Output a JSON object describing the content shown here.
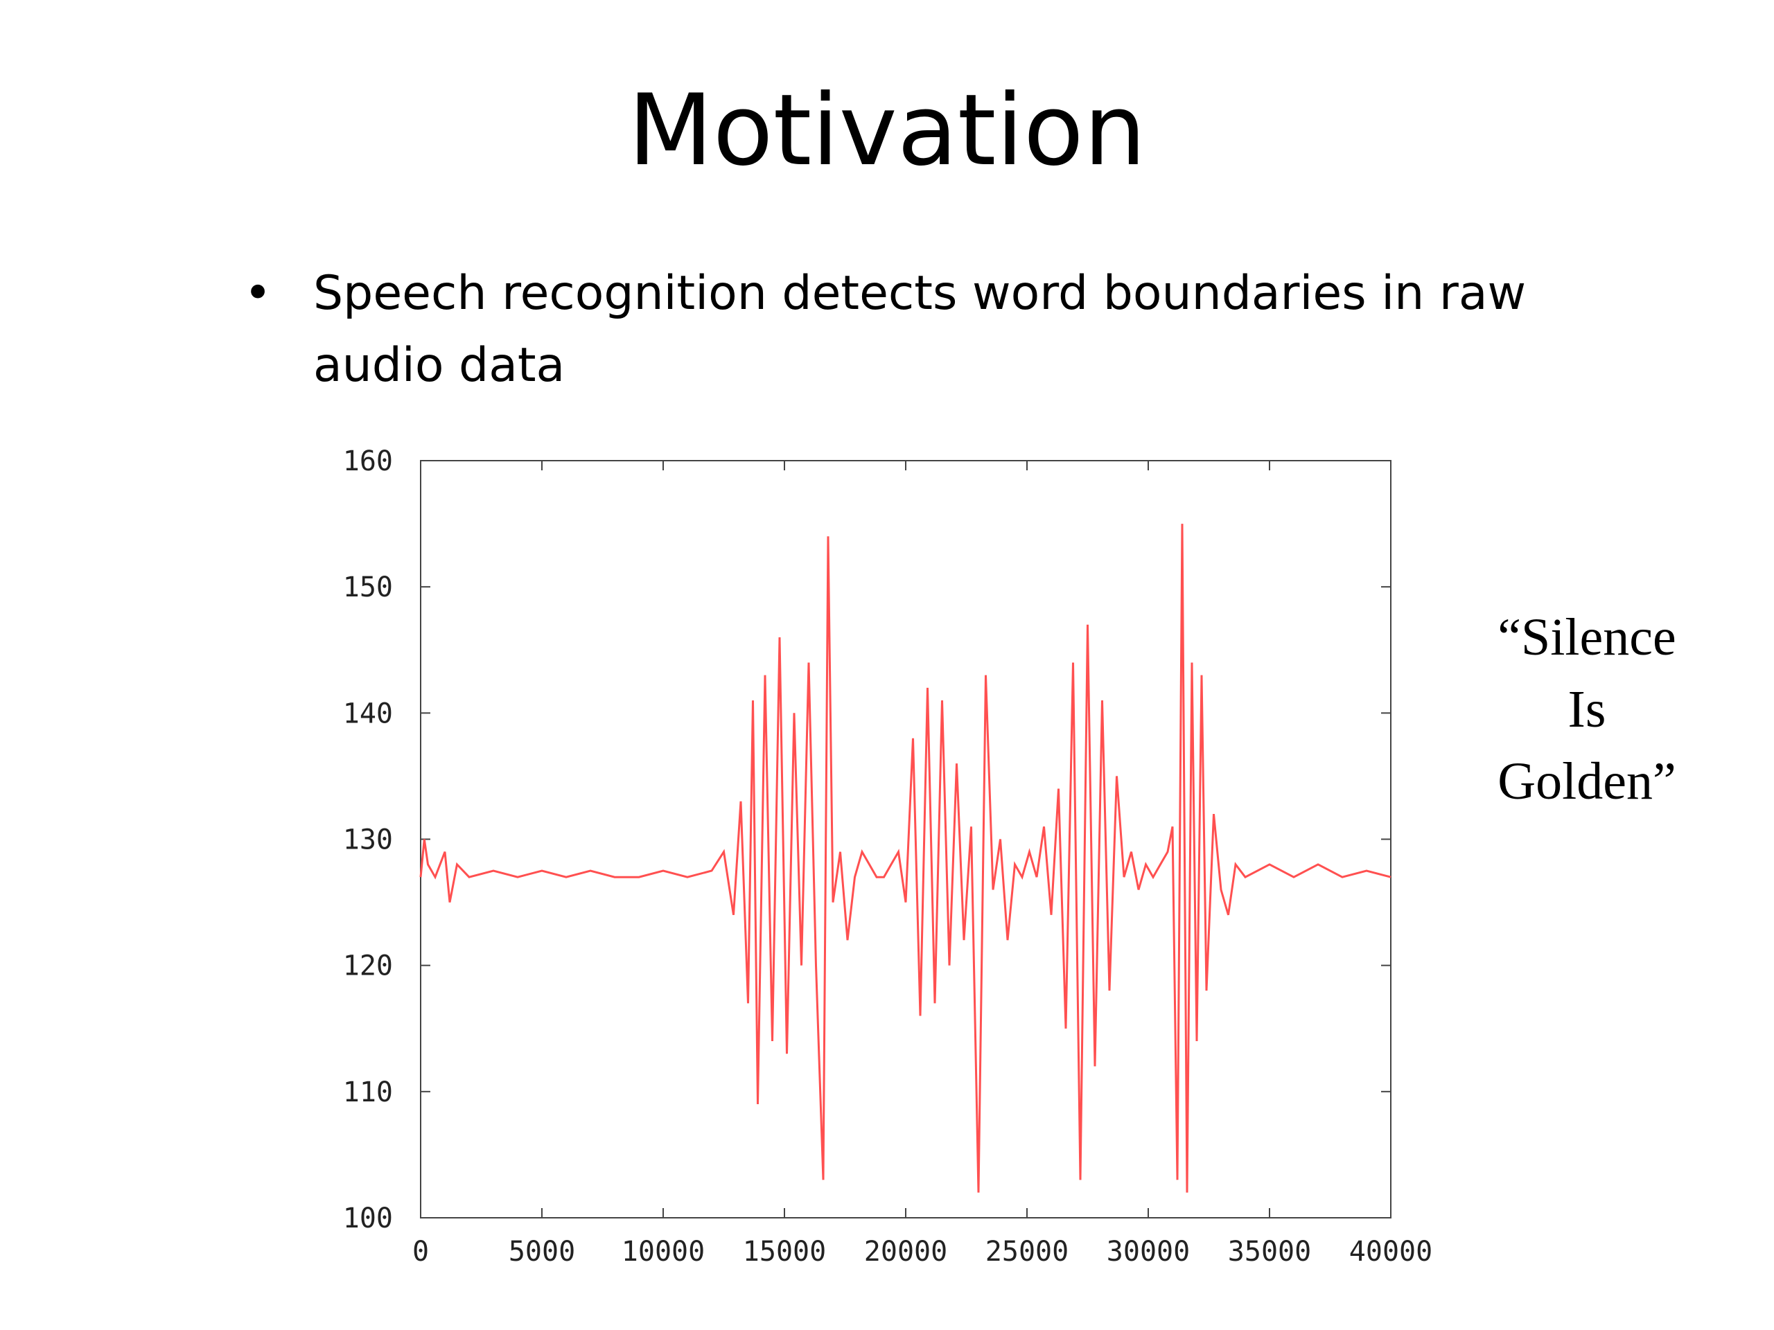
{
  "slide": {
    "title": "Motivation",
    "bullet": "Speech recognition detects word boundaries in raw audio data",
    "quote_lines": [
      "“Silence",
      "Is",
      "Golden”"
    ]
  },
  "chart_data": {
    "type": "line",
    "title": "",
    "xlabel": "",
    "ylabel": "",
    "xlim": [
      0,
      40000
    ],
    "ylim": [
      100,
      160
    ],
    "x_ticks": [
      0,
      5000,
      10000,
      15000,
      20000,
      25000,
      30000,
      35000,
      40000
    ],
    "y_ticks": [
      100,
      110,
      120,
      130,
      140,
      150,
      160
    ],
    "grid": false,
    "legend": "none",
    "series": [
      {
        "color": "#ff5050",
        "x": [
          0,
          150,
          300,
          600,
          1000,
          1200,
          1500,
          2000,
          3000,
          4000,
          5000,
          6000,
          7000,
          8000,
          9000,
          10000,
          11000,
          12000,
          12500,
          12900,
          13200,
          13500,
          13700,
          13900,
          14200,
          14500,
          14800,
          15100,
          15400,
          15700,
          16000,
          16300,
          16600,
          16800,
          17000,
          17300,
          17600,
          17900,
          18200,
          18500,
          18800,
          19100,
          19400,
          19700,
          20000,
          20300,
          20600,
          20900,
          21200,
          21500,
          21800,
          22100,
          22400,
          22700,
          23000,
          23300,
          23600,
          23900,
          24200,
          24500,
          24800,
          25100,
          25400,
          25700,
          26000,
          26300,
          26600,
          26900,
          27200,
          27500,
          27800,
          28100,
          28400,
          28700,
          29000,
          29300,
          29600,
          29900,
          30200,
          30500,
          30800,
          31000,
          31200,
          31400,
          31600,
          31800,
          32000,
          32200,
          32400,
          32700,
          33000,
          33300,
          33600,
          34000,
          35000,
          36000,
          37000,
          38000,
          39000,
          40000
        ],
        "y": [
          127,
          130,
          128,
          127,
          129,
          125,
          128,
          127,
          127.5,
          127,
          127.5,
          127,
          127.5,
          127,
          127,
          127.5,
          127,
          127.5,
          129,
          124,
          133,
          117,
          141,
          109,
          143,
          114,
          146,
          113,
          140,
          120,
          144,
          120,
          103,
          154,
          125,
          129,
          122,
          127,
          129,
          128,
          127,
          127,
          128,
          129,
          125,
          138,
          116,
          142,
          117,
          141,
          120,
          136,
          122,
          131,
          102,
          143,
          126,
          130,
          122,
          128,
          127,
          129,
          127,
          131,
          124,
          134,
          115,
          144,
          103,
          147,
          112,
          141,
          118,
          135,
          127,
          129,
          126,
          128,
          127,
          128,
          129,
          131,
          103,
          155,
          102,
          144,
          114,
          143,
          118,
          132,
          126,
          124,
          128,
          127,
          128,
          127,
          128,
          127,
          127.5,
          127
        ]
      }
    ]
  }
}
